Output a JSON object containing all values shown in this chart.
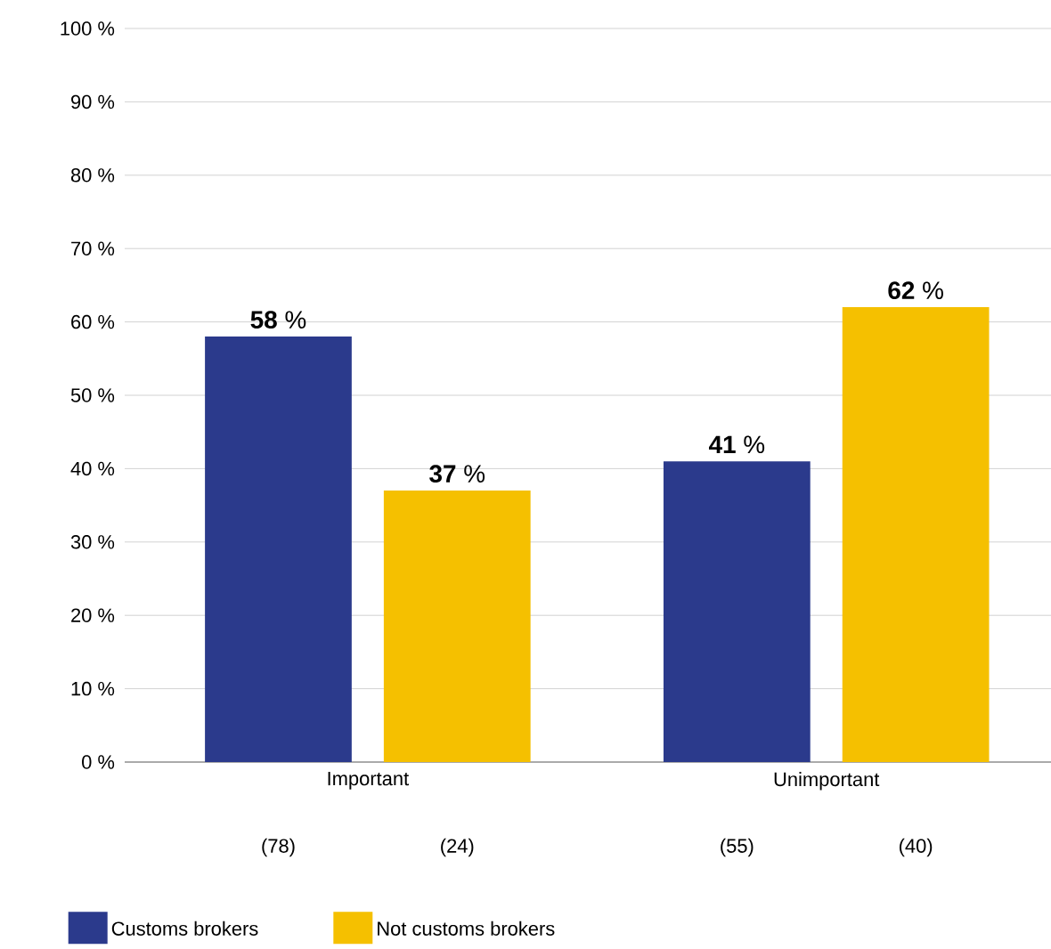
{
  "chart_data": {
    "type": "bar",
    "categories": [
      "Important",
      "Unimportant"
    ],
    "series": [
      {
        "name": "Customs brokers",
        "color": "#2b3a8c",
        "values": [
          58,
          41
        ],
        "value_labels": [
          "**58** %",
          "**41** %"
        ]
      },
      {
        "name": "Not customs brokers",
        "color": "#f5c000",
        "values": [
          37,
          62
        ],
        "value_labels": [
          "**37** %",
          "**62** %"
        ]
      }
    ],
    "ylim": [
      0,
      100
    ],
    "yticks": [
      {
        "value": 0,
        "label": "0 %"
      },
      {
        "value": 10,
        "label": "10 %"
      },
      {
        "value": 20,
        "label": "20 %"
      },
      {
        "value": 30,
        "label": "30 %"
      },
      {
        "value": 40,
        "label": "40 %"
      },
      {
        "value": 50,
        "label": "50 %"
      },
      {
        "value": 60,
        "label": "60 %"
      },
      {
        "value": 70,
        "label": "70 %"
      },
      {
        "value": 80,
        "label": "80 %"
      },
      {
        "value": 90,
        "label": "90 %"
      },
      {
        "value": 100,
        "label": "100 %"
      }
    ],
    "annotations": [
      "(78)",
      "(24)",
      "(55)",
      "(40)"
    ],
    "grid": "y",
    "legend": "bottom"
  }
}
